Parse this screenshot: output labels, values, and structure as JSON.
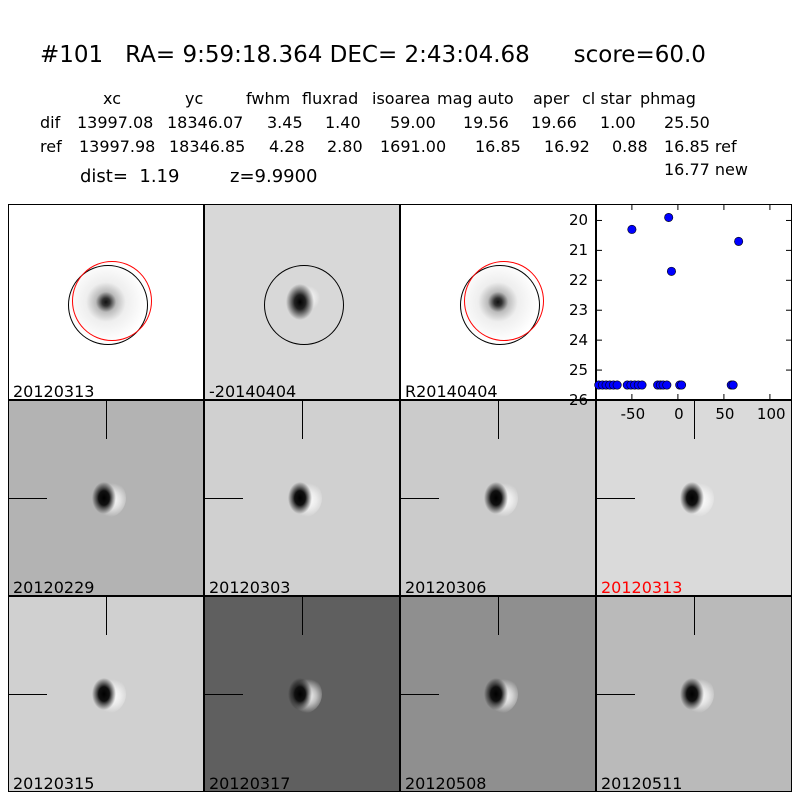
{
  "header": {
    "title": "#101   RA= 9:59:18.364 DEC= 2:43:04.68      score=60.0",
    "columns": [
      "xc",
      "yc",
      "fwhm",
      "fluxrad",
      "isoarea",
      "mag auto",
      "aper",
      "cl star",
      "phmag"
    ],
    "rows": [
      {
        "name": "dif",
        "values": [
          "13997.08",
          "18346.07",
          "3.45",
          "1.40",
          "59.00",
          "19.56",
          "19.66",
          "1.00",
          "25.50"
        ]
      },
      {
        "name": "ref",
        "values": [
          "13997.98",
          "18346.85",
          "4.28",
          "2.80",
          "1691.00",
          "16.85",
          "16.92",
          "0.88",
          "16.85 ref"
        ]
      }
    ],
    "phmag_new": "16.77 new",
    "dist": "dist=  1.19",
    "z": "z=9.9900"
  },
  "panels": [
    {
      "label": "20120313",
      "bg": "#ffffff",
      "type": "ref",
      "circles": [
        "black",
        "red"
      ]
    },
    {
      "label": "-20140404",
      "bg": "#d8d8d8",
      "type": "dif",
      "circles": [
        "black"
      ]
    },
    {
      "label": "R20140404",
      "bg": "#ffffff",
      "type": "ref",
      "circles": [
        "black",
        "red"
      ]
    },
    {
      "label": "20120229",
      "bg": "#b3b3b3",
      "type": "stamp"
    },
    {
      "label": "20120303",
      "bg": "#d0d0d0",
      "type": "stamp"
    },
    {
      "label": "20120306",
      "bg": "#cbcbcb",
      "type": "stamp"
    },
    {
      "label": "20120313",
      "bg": "#dadada",
      "type": "stamp",
      "label_color": "#ff0000"
    },
    {
      "label": "20120315",
      "bg": "#d0d0d0",
      "type": "stamp"
    },
    {
      "label": "20120317",
      "bg": "#5f5f5f",
      "type": "stamp"
    },
    {
      "label": "20120508",
      "bg": "#8f8f8f",
      "type": "stamp"
    },
    {
      "label": "20120511",
      "bg": "#bababa",
      "type": "stamp"
    }
  ],
  "chart_data": {
    "type": "scatter",
    "xlim": [
      -89,
      124
    ],
    "ylim": [
      26,
      19.45
    ],
    "y_inverted": true,
    "xticks": [
      "-50",
      "0",
      "50",
      "100"
    ],
    "xtick_values": [
      -50,
      0,
      50,
      100
    ],
    "yticks": [
      "20",
      "21",
      "22",
      "23",
      "24",
      "25",
      "26"
    ],
    "ytick_values": [
      20,
      21,
      22,
      23,
      24,
      25,
      26
    ],
    "marker_color": "#0000ff",
    "x": [
      -50,
      -10,
      -7,
      66,
      -86,
      -82,
      -78,
      -74,
      -70,
      -66,
      -55,
      -51,
      -47,
      -43,
      -39,
      -22,
      -19,
      -16,
      -12,
      2,
      4,
      58,
      60
    ],
    "y": [
      20.3,
      19.9,
      21.7,
      20.7,
      25.5,
      25.5,
      25.5,
      25.5,
      25.5,
      25.5,
      25.5,
      25.5,
      25.5,
      25.5,
      25.5,
      25.5,
      25.5,
      25.5,
      25.5,
      25.5,
      25.5,
      25.5,
      25.5
    ]
  }
}
